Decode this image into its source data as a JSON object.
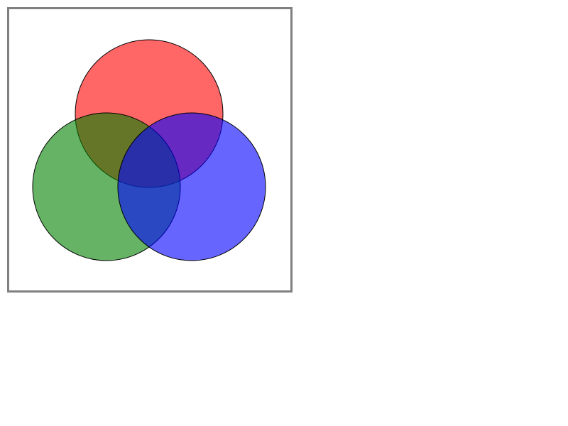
{
  "diagram": {
    "type": "venn",
    "sets": [
      {
        "id": "top",
        "color": "#ff0000",
        "opacity": 0.6
      },
      {
        "id": "left",
        "color": "#008000",
        "opacity": 0.6
      },
      {
        "id": "right",
        "color": "#0000ff",
        "opacity": 0.6
      }
    ],
    "stroke_color": "#000000",
    "frame_color": "#808080"
  }
}
